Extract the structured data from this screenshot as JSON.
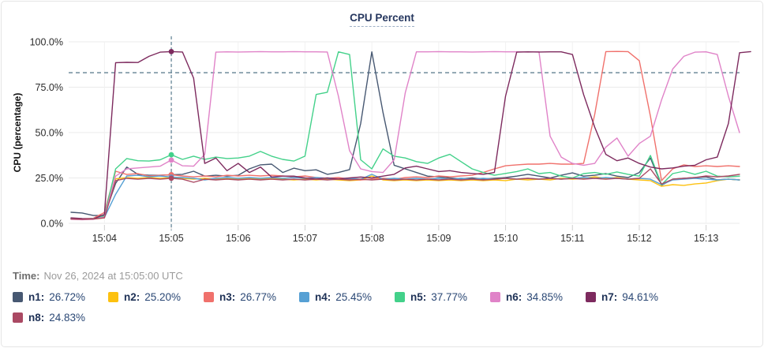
{
  "card": {
    "title": "CPU Percent"
  },
  "time_row": {
    "label": "Time:",
    "value": "Nov 26, 2024 at 15:05:00 UTC"
  },
  "legend": [
    {
      "label": "n1:",
      "value": "26.72%",
      "color": "#475872"
    },
    {
      "label": "n2:",
      "value": "25.20%",
      "color": "#fdc110"
    },
    {
      "label": "n3:",
      "value": "26.77%",
      "color": "#f0716c"
    },
    {
      "label": "n4:",
      "value": "25.45%",
      "color": "#56a0d4"
    },
    {
      "label": "n5:",
      "value": "37.77%",
      "color": "#43d18a"
    },
    {
      "label": "n6:",
      "value": "34.85%",
      "color": "#e083c8"
    },
    {
      "label": "n7:",
      "value": "94.61%",
      "color": "#7d2a5e"
    },
    {
      "label": "n8:",
      "value": "24.83%",
      "color": "#aa4963"
    }
  ],
  "chart_data": {
    "type": "line",
    "title": "CPU Percent",
    "ylabel": "CPU (percentage)",
    "ylim": [
      0,
      100
    ],
    "grid": true,
    "legend_position": "bottom",
    "x_start_time": "15:03:30",
    "x_step_seconds": 10,
    "y_ticks": [
      {
        "value": 0,
        "label": "0.0%"
      },
      {
        "value": 25,
        "label": "25.0%"
      },
      {
        "value": 50,
        "label": "50.0%"
      },
      {
        "value": 75,
        "label": "75.0%"
      },
      {
        "value": 100,
        "label": "100.0%"
      }
    ],
    "x_ticks": [
      {
        "index": 3,
        "label": "15:04"
      },
      {
        "index": 9,
        "label": "15:05"
      },
      {
        "index": 15,
        "label": "15:06"
      },
      {
        "index": 21,
        "label": "15:07"
      },
      {
        "index": 27,
        "label": "15:08"
      },
      {
        "index": 33,
        "label": "15:09"
      },
      {
        "index": 39,
        "label": "15:10"
      },
      {
        "index": 45,
        "label": "15:11"
      },
      {
        "index": 51,
        "label": "15:12"
      },
      {
        "index": 57,
        "label": "15:13"
      }
    ],
    "threshold_y": 83,
    "crosshair": {
      "time": "15:05:00",
      "index": 9
    },
    "series": [
      {
        "name": "n1",
        "color": "#475872",
        "values": [
          6.1,
          5.7,
          4.3,
          4.3,
          22,
          31,
          27,
          26.5,
          26.5,
          26.72,
          27,
          28.7,
          26,
          26.5,
          26,
          26.5,
          30,
          32.2,
          32.6,
          28,
          30.4,
          29,
          29.5,
          27,
          28,
          29.6,
          55,
          94.5,
          61,
          32,
          30,
          28,
          26,
          25.6,
          25,
          24.5,
          25,
          24.3,
          24.8,
          25.2,
          26,
          27,
          26,
          25,
          26.5,
          27.8,
          26,
          26.5,
          27.4,
          26,
          25.2,
          28,
          36,
          21,
          24.3,
          24.8,
          25.2,
          25.6,
          23.9,
          24.3,
          23.9
        ]
      },
      {
        "name": "n2",
        "color": "#fdc110",
        "values": [
          2.3,
          2.1,
          2.3,
          3,
          24.5,
          25.2,
          24.8,
          25.2,
          24.8,
          25.2,
          24.8,
          24.3,
          24.8,
          24.3,
          24.8,
          24.3,
          24.8,
          24.3,
          24.8,
          24.3,
          23.9,
          24.3,
          23.9,
          24.3,
          23.9,
          23.5,
          23.9,
          26.1,
          23.9,
          23.5,
          23.9,
          23.5,
          23.9,
          23.5,
          23.9,
          23.5,
          23.9,
          23.5,
          23.9,
          23.5,
          24.3,
          23.9,
          24.3,
          23.9,
          24.8,
          24.3,
          24.8,
          25.6,
          24.8,
          25.2,
          24.3,
          23.9,
          23.5,
          20.4,
          21.3,
          20.9,
          21.7,
          22.2,
          23.5,
          24.3,
          23.9
        ]
      },
      {
        "name": "n3",
        "color": "#f0716c",
        "values": [
          2.8,
          2.5,
          2.8,
          6,
          28.7,
          26.9,
          27.4,
          26.1,
          26.5,
          26.77,
          26.1,
          25.6,
          26.1,
          25.6,
          26.5,
          26.1,
          26.5,
          26.1,
          26.5,
          26.1,
          25.6,
          26.1,
          25.2,
          24.8,
          25.2,
          24.3,
          23.9,
          24.3,
          24.8,
          24.3,
          25.2,
          25.6,
          25.2,
          26.1,
          25.6,
          26.1,
          26.5,
          28,
          30,
          31.7,
          32.2,
          32.6,
          32.6,
          33,
          32.6,
          32.6,
          33,
          60,
          94.6,
          94.7,
          94.6,
          89.6,
          59,
          23.5,
          30,
          32.2,
          31.3,
          31.7,
          31.3,
          31.7,
          31.3
        ]
      },
      {
        "name": "n4",
        "color": "#56a0d4",
        "values": [
          2.6,
          2.4,
          2.6,
          3.2,
          16,
          26.1,
          26.5,
          25.6,
          26.1,
          25.45,
          25.2,
          24.8,
          23.9,
          24.8,
          25.2,
          24.8,
          25.2,
          24.8,
          25.2,
          24.8,
          25.2,
          24.8,
          25.2,
          24.8,
          24.3,
          24.8,
          24.3,
          27,
          24.3,
          24.8,
          24.3,
          24.8,
          24.3,
          24.8,
          24.3,
          24.8,
          24.3,
          24.8,
          24.3,
          24.8,
          24.3,
          24.8,
          24.3,
          24.8,
          24.3,
          24.8,
          25.2,
          24.8,
          25.2,
          24.8,
          24.3,
          24.8,
          24.3,
          21.3,
          23.9,
          24.3,
          24.8,
          24.3,
          23.9,
          24.3,
          23.9
        ]
      },
      {
        "name": "n5",
        "color": "#43d18a",
        "values": [
          2.5,
          2.3,
          2.5,
          4,
          30,
          35.7,
          34.5,
          34.3,
          35,
          37.77,
          35.2,
          37,
          35.2,
          36.5,
          35.7,
          36,
          37,
          39.6,
          37,
          35.2,
          34.3,
          37,
          71,
          72.2,
          94.5,
          93,
          35,
          30,
          41,
          37,
          36,
          34,
          33,
          36,
          38,
          34,
          30,
          28,
          26.5,
          27.5,
          28.5,
          30,
          27.4,
          28,
          26,
          25,
          27.4,
          28,
          27,
          28.3,
          27,
          26,
          37.4,
          21.3,
          27.4,
          28.7,
          27,
          28.7,
          26,
          25.6,
          26
        ]
      },
      {
        "name": "n6",
        "color": "#e083c8",
        "values": [
          2.2,
          2,
          2.2,
          3.5,
          26,
          30,
          30.5,
          31,
          31.5,
          34.85,
          31.7,
          31.5,
          38,
          94.3,
          94.5,
          94.4,
          94.5,
          94.6,
          94.5,
          94.5,
          94.6,
          94.5,
          94.5,
          94.4,
          70,
          40,
          30,
          28.5,
          28,
          35,
          72,
          94.5,
          94.5,
          94.6,
          94.5,
          94.5,
          94.4,
          94.5,
          94.6,
          94.5,
          94.5,
          94.4,
          94.5,
          48,
          36.5,
          33,
          32,
          33,
          42,
          47,
          37,
          44,
          48,
          68,
          85,
          92,
          94.3,
          94.5,
          93,
          70,
          50
        ]
      },
      {
        "name": "n7",
        "color": "#7d2a5e",
        "values": [
          3,
          2.6,
          2.4,
          5,
          88.5,
          88.7,
          88.6,
          92,
          94.3,
          94.61,
          94.4,
          80,
          33,
          36,
          29,
          33,
          28,
          31,
          25.5,
          26,
          26,
          25,
          24.5,
          25,
          24.5,
          25,
          25.5,
          25,
          26,
          27,
          30.5,
          31.5,
          30,
          28.5,
          29,
          28,
          27.5,
          27,
          28,
          70,
          94.3,
          94.5,
          94.4,
          94.5,
          94.5,
          93,
          71,
          53,
          38,
          34.5,
          36,
          33,
          31,
          30,
          30.5,
          31.5,
          32,
          35,
          36.5,
          55,
          94,
          94.6
        ]
      },
      {
        "name": "n8",
        "color": "#aa4963",
        "values": [
          2.4,
          2.2,
          2.4,
          3,
          23.5,
          24.8,
          24.3,
          24.8,
          24.3,
          24.83,
          24.3,
          22.6,
          24.3,
          23.9,
          24.3,
          23.9,
          24.3,
          23.9,
          24.3,
          23.9,
          24.3,
          23.9,
          24.3,
          23.9,
          24.3,
          23.9,
          24.3,
          23.9,
          24.3,
          23.9,
          24.3,
          23.9,
          24.3,
          23.9,
          24.3,
          23.9,
          24.3,
          23.9,
          24.3,
          24.8,
          24.3,
          24.8,
          24.3,
          24.8,
          24.3,
          24.8,
          24.3,
          24.8,
          24.3,
          24.8,
          24.3,
          24.8,
          30,
          21.7,
          24.3,
          24.8,
          25.2,
          26.1,
          25.6,
          26.1,
          27
        ]
      }
    ]
  }
}
